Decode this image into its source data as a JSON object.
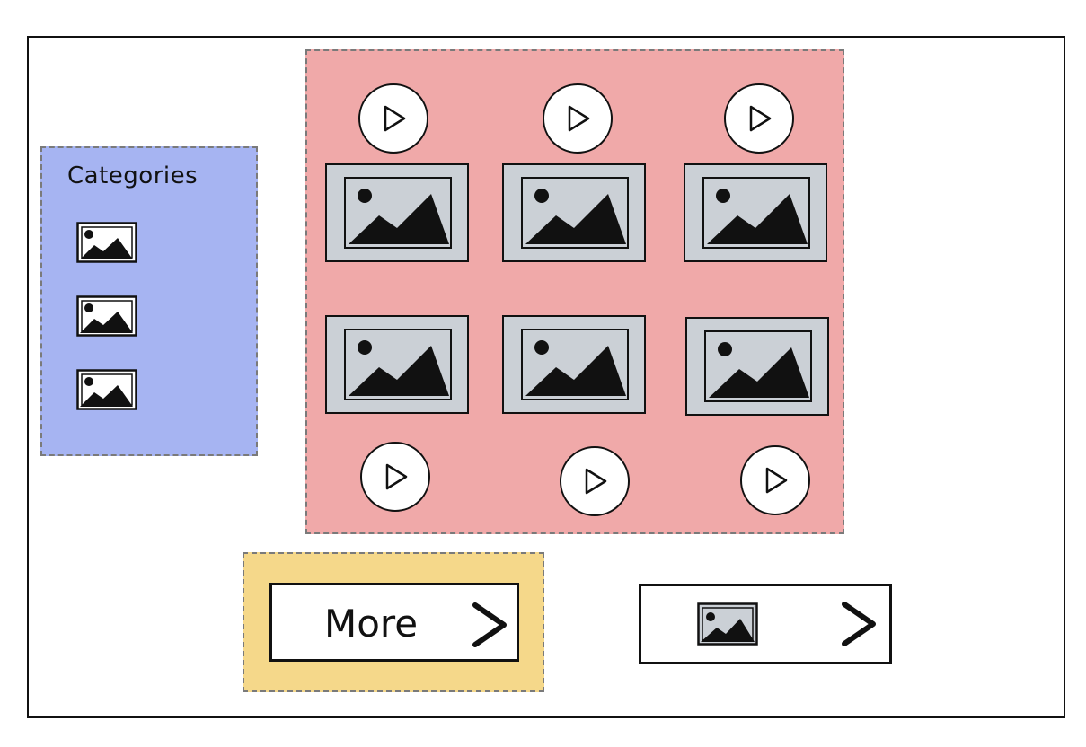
{
  "sidebar": {
    "title": "Categories",
    "items": [
      {
        "icon": "image-icon"
      },
      {
        "icon": "image-icon"
      },
      {
        "icon": "image-icon"
      }
    ]
  },
  "grid": {
    "play_buttons_top": [
      {
        "icon": "play-icon"
      },
      {
        "icon": "play-icon"
      },
      {
        "icon": "play-icon"
      }
    ],
    "tiles_row1": [
      {
        "icon": "image-icon"
      },
      {
        "icon": "image-icon"
      },
      {
        "icon": "image-icon"
      }
    ],
    "tiles_row2": [
      {
        "icon": "image-icon"
      },
      {
        "icon": "image-icon"
      },
      {
        "icon": "image-icon"
      }
    ],
    "play_buttons_bottom": [
      {
        "icon": "play-icon"
      },
      {
        "icon": "play-icon"
      },
      {
        "icon": "play-icon"
      }
    ]
  },
  "more_button": {
    "label": "More",
    "icon": "chevron-right-icon"
  },
  "nav_button": {
    "thumb_icon": "image-icon",
    "arrow_icon": "chevron-right-icon"
  },
  "colors": {
    "sidebar_bg": "#a6b4f2",
    "grid_bg": "#f0a9a9",
    "more_bg": "#f5d88a",
    "tile_bg": "#cbd0d6"
  }
}
